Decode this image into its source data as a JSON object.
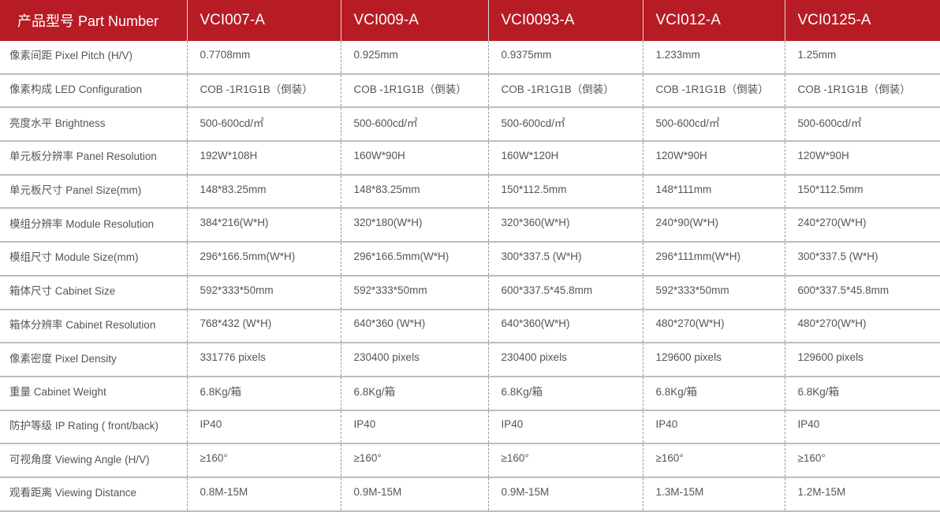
{
  "header": {
    "label": "产品型号 Part Number",
    "models": [
      "VCI007-A",
      "VCI009-A",
      "VCI0093-A",
      "VCI012-A",
      "VCI0125-A"
    ]
  },
  "rows": [
    {
      "label": "像素间距 Pixel Pitch (H/V)",
      "values": [
        "0.7708mm",
        "0.925mm",
        "0.9375mm",
        "1.233mm",
        "1.25mm"
      ]
    },
    {
      "label": "像素构成 LED Configuration",
      "values": [
        "COB -1R1G1B（倒装）",
        "COB -1R1G1B（倒装）",
        "COB -1R1G1B（倒装）",
        "COB -1R1G1B（倒装）",
        "COB -1R1G1B（倒装）"
      ]
    },
    {
      "label": "亮度水平 Brightness",
      "values": [
        "500-600cd/㎡",
        "500-600cd/㎡",
        "500-600cd/㎡",
        "500-600cd/㎡",
        "500-600cd/㎡"
      ]
    },
    {
      "label": "单元板分辨率  Panel Resolution",
      "values": [
        "192W*108H",
        "160W*90H",
        "160W*120H",
        "120W*90H",
        "120W*90H"
      ]
    },
    {
      "label": "单元板尺寸  Panel  Size(mm)",
      "values": [
        "148*83.25mm",
        "148*83.25mm",
        "150*112.5mm",
        "148*111mm",
        "150*112.5mm"
      ]
    },
    {
      "label": "模组分辨率  Module Resolution",
      "values": [
        "384*216(W*H)",
        "320*180(W*H)",
        "320*360(W*H)",
        "240*90(W*H)",
        "240*270(W*H)"
      ]
    },
    {
      "label": "模组尺寸 Module Size(mm)",
      "values": [
        "296*166.5mm(W*H)",
        "296*166.5mm(W*H)",
        "300*337.5 (W*H)",
        "296*111mm(W*H)",
        "300*337.5 (W*H)"
      ]
    },
    {
      "label": "箱体尺寸 Cabinet Size",
      "values": [
        "592*333*50mm",
        "592*333*50mm",
        "600*337.5*45.8mm",
        "592*333*50mm",
        "600*337.5*45.8mm"
      ]
    },
    {
      "label": "箱体分辨率 Cabinet Resolution",
      "values": [
        "768*432 (W*H)",
        "640*360 (W*H)",
        "640*360(W*H)",
        "480*270(W*H)",
        "480*270(W*H)"
      ]
    },
    {
      "label": "像素密度 Pixel Density",
      "values": [
        "331776 pixels",
        "230400 pixels",
        "230400 pixels",
        "129600 pixels",
        "129600 pixels"
      ]
    },
    {
      "label": "重量  Cabinet Weight",
      "values": [
        "6.8Kg/箱",
        "6.8Kg/箱",
        "6.8Kg/箱",
        "6.8Kg/箱",
        "6.8Kg/箱"
      ]
    },
    {
      "label": "防护等级 IP Rating ( front/back)",
      "values": [
        "IP40",
        "IP40",
        "IP40",
        "IP40",
        "IP40"
      ]
    },
    {
      "label": "可视角度 Viewing Angle (H/V)",
      "values": [
        "≥160°",
        "≥160°",
        "≥160°",
        "≥160°",
        "≥160°"
      ]
    },
    {
      "label": "观看距离  Viewing Distance",
      "values": [
        "0.8M-15M",
        "0.9M-15M",
        "0.9M-15M",
        "1.3M-15M",
        "1.2M-15M"
      ]
    }
  ],
  "colors": {
    "header_bg": "#b71c24",
    "header_text": "#ffffff",
    "body_text": "#555555"
  }
}
